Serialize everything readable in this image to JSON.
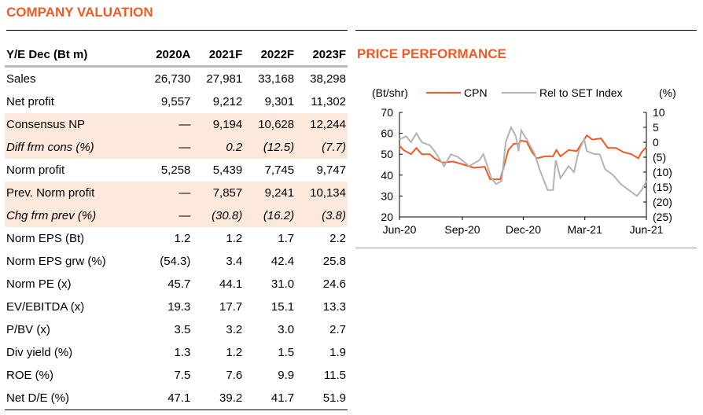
{
  "valuation": {
    "title": "COMPANY VALUATION",
    "headers": [
      "Y/E Dec (Bt m)",
      "2020A",
      "2021F",
      "2022F",
      "2023F"
    ],
    "rows": [
      {
        "label": "Sales",
        "values": [
          "26,730",
          "27,981",
          "33,168",
          "38,298"
        ],
        "style": ""
      },
      {
        "label": "Net profit",
        "values": [
          "9,557",
          "9,212",
          "9,301",
          "11,302"
        ],
        "style": ""
      },
      {
        "label": "Consensus NP",
        "values": [
          "—",
          "9,194",
          "10,628",
          "12,244"
        ],
        "style": "shade"
      },
      {
        "label": "Diff frm cons (%)",
        "values": [
          "—",
          "0.2",
          "(12.5)",
          "(7.7)"
        ],
        "style": "shade ital"
      },
      {
        "label": "Norm profit",
        "values": [
          "5,258",
          "5,439",
          "7,745",
          "9,747"
        ],
        "style": ""
      },
      {
        "label": "Prev. Norm profit",
        "values": [
          "—",
          "7,857",
          "9,241",
          "10,134"
        ],
        "style": "shade"
      },
      {
        "label": "Chg frm prev (%)",
        "values": [
          "—",
          "(30.8)",
          "(16.2)",
          "(3.8)"
        ],
        "style": "shade ital"
      },
      {
        "label": "Norm EPS (Bt)",
        "values": [
          "1.2",
          "1.2",
          "1.7",
          "2.2"
        ],
        "style": ""
      },
      {
        "label": "Norm EPS grw (%)",
        "values": [
          "(54.3)",
          "3.4",
          "42.4",
          "25.8"
        ],
        "style": ""
      },
      {
        "label": "Norm PE (x)",
        "values": [
          "45.7",
          "44.1",
          "31.0",
          "24.6"
        ],
        "style": ""
      },
      {
        "label": "EV/EBITDA (x)",
        "values": [
          "19.3",
          "17.7",
          "15.1",
          "13.3"
        ],
        "style": ""
      },
      {
        "label": "P/BV (x)",
        "values": [
          "3.5",
          "3.2",
          "3.0",
          "2.7"
        ],
        "style": ""
      },
      {
        "label": "Div yield (%)",
        "values": [
          "1.3",
          "1.2",
          "1.5",
          "1.9"
        ],
        "style": ""
      },
      {
        "label": "ROE (%)",
        "values": [
          "7.5",
          "7.6",
          "9.9",
          "11.5"
        ],
        "style": ""
      },
      {
        "label": "Net D/E (%)",
        "values": [
          "47.1",
          "39.2",
          "41.7",
          "51.9"
        ],
        "style": ""
      }
    ]
  },
  "price": {
    "title": "PRICE PERFORMANCE"
  },
  "chart_data": {
    "type": "line",
    "ylabel_left": "(Bt/shr)",
    "ylabel_right": "(%)",
    "ylim_left": [
      20,
      70
    ],
    "yticks_left": [
      "70",
      "60",
      "50",
      "40",
      "30",
      "20"
    ],
    "ylim_right": [
      -25,
      10
    ],
    "yticks_right": [
      "10",
      "5",
      "0",
      "(5)",
      "(10)",
      "(15)",
      "(20)",
      "(25)"
    ],
    "xlim": [
      "2020-06-01",
      "2021-06-01"
    ],
    "xticks": [
      {
        "date": "2020-06-01",
        "label": "Jun-20"
      },
      {
        "date": "2020-09-02",
        "label": "Sep-20"
      },
      {
        "date": "2020-12-01",
        "label": "Dec-20"
      },
      {
        "date": "2021-03-02",
        "label": "Mar-21"
      },
      {
        "date": "2021-06-01",
        "label": "Jun-21"
      }
    ],
    "legend": "top",
    "series": [
      {
        "name": "CPN",
        "axis": "left",
        "color": "#f15a22",
        "points": [
          [
            "2020-06-01",
            54
          ],
          [
            "2020-06-07",
            52
          ],
          [
            "2020-06-18",
            50
          ],
          [
            "2020-06-26",
            53
          ],
          [
            "2020-07-04",
            50
          ],
          [
            "2020-07-16",
            50
          ],
          [
            "2020-07-23",
            48
          ],
          [
            "2020-08-04",
            46
          ],
          [
            "2020-08-19",
            46.5
          ],
          [
            "2020-09-04",
            45
          ],
          [
            "2020-09-19",
            43.5
          ],
          [
            "2020-10-05",
            44
          ],
          [
            "2020-10-13",
            38
          ],
          [
            "2020-10-28",
            38
          ],
          [
            "2020-11-03",
            45
          ],
          [
            "2020-11-09",
            52
          ],
          [
            "2020-11-17",
            55
          ],
          [
            "2020-11-24",
            55
          ],
          [
            "2020-11-28",
            56.5
          ],
          [
            "2020-12-06",
            56
          ],
          [
            "2020-12-14",
            51
          ],
          [
            "2020-12-21",
            48
          ],
          [
            "2021-01-02",
            49
          ],
          [
            "2021-01-14",
            49
          ],
          [
            "2021-01-19",
            52
          ],
          [
            "2021-01-25",
            49
          ],
          [
            "2021-02-06",
            52
          ],
          [
            "2021-02-18",
            51.5
          ],
          [
            "2021-02-25",
            55
          ],
          [
            "2021-03-05",
            59
          ],
          [
            "2021-03-13",
            57
          ],
          [
            "2021-03-26",
            57.5
          ],
          [
            "2021-04-05",
            53
          ],
          [
            "2021-04-17",
            53
          ],
          [
            "2021-04-28",
            51
          ],
          [
            "2021-05-10",
            50
          ],
          [
            "2021-05-20",
            48
          ],
          [
            "2021-05-25",
            51
          ],
          [
            "2021-06-01",
            53.5
          ]
        ]
      },
      {
        "name": "Rel to SET Index",
        "axis": "right",
        "color": "#b3b3b3",
        "points": [
          [
            "2020-06-01",
            1
          ],
          [
            "2020-06-11",
            2
          ],
          [
            "2020-06-18",
            0
          ],
          [
            "2020-06-26",
            3
          ],
          [
            "2020-07-04",
            0
          ],
          [
            "2020-07-16",
            -1
          ],
          [
            "2020-07-23",
            -3
          ],
          [
            "2020-08-06",
            -8
          ],
          [
            "2020-08-16",
            -4
          ],
          [
            "2020-08-27",
            -5
          ],
          [
            "2020-09-12",
            -8
          ],
          [
            "2020-09-27",
            -6
          ],
          [
            "2020-10-03",
            -4
          ],
          [
            "2020-10-09",
            -8
          ],
          [
            "2020-10-15",
            -12
          ],
          [
            "2020-10-22",
            -14
          ],
          [
            "2020-10-30",
            -13
          ],
          [
            "2020-11-05",
            0
          ],
          [
            "2020-11-13",
            5
          ],
          [
            "2020-11-20",
            2
          ],
          [
            "2020-11-24",
            -3
          ],
          [
            "2020-11-28",
            4
          ],
          [
            "2020-12-06",
            1
          ],
          [
            "2020-12-18",
            -4
          ],
          [
            "2020-12-25",
            -9
          ],
          [
            "2021-01-06",
            -16
          ],
          [
            "2021-01-14",
            -16
          ],
          [
            "2021-01-18",
            -6
          ],
          [
            "2021-01-25",
            -12
          ],
          [
            "2021-02-06",
            -8
          ],
          [
            "2021-02-14",
            -10
          ],
          [
            "2021-02-21",
            -3
          ],
          [
            "2021-03-01",
            1
          ],
          [
            "2021-03-05",
            -3
          ],
          [
            "2021-03-17",
            -4
          ],
          [
            "2021-03-24",
            -4
          ],
          [
            "2021-04-01",
            -9
          ],
          [
            "2021-04-13",
            -11
          ],
          [
            "2021-04-24",
            -14
          ],
          [
            "2021-05-06",
            -16
          ],
          [
            "2021-05-18",
            -18
          ],
          [
            "2021-05-25",
            -16
          ],
          [
            "2021-06-01",
            -13
          ]
        ]
      }
    ]
  }
}
